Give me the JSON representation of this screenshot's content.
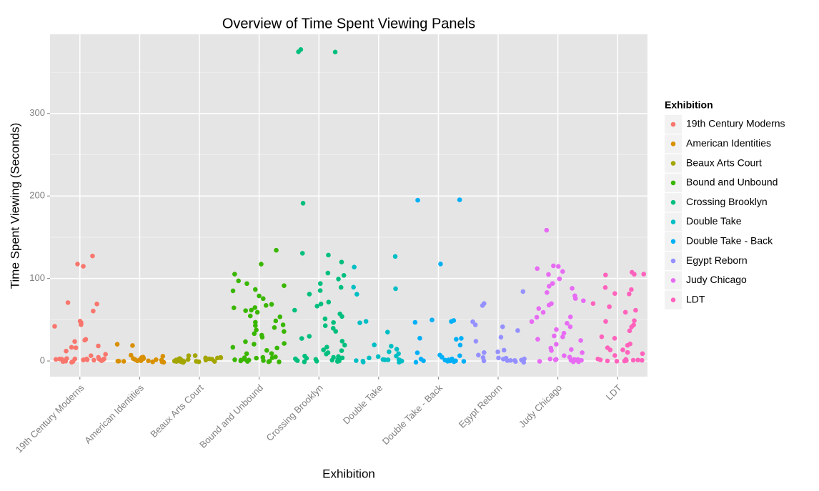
{
  "chart_data": {
    "type": "strip",
    "title": "Overview of Time Spent Viewing Panels",
    "x_label": "Exhibition",
    "y_label": "Time Spent Viewing (Seconds)",
    "legend_title": "Exhibition",
    "categories": [
      "19th Century Moderns",
      "American Identities",
      "Beaux Arts Court",
      "Bound and Unbound",
      "Crossing Brooklyn",
      "Double Take",
      "Double Take - Back",
      "Egypt Reborn",
      "Judy Chicago",
      "LDT"
    ],
    "ylim": [
      -19,
      396
    ],
    "yticks": [
      0,
      100,
      200,
      300
    ],
    "grid": true,
    "series": [
      {
        "name": "19th Century Moderns",
        "color": "#F8766D",
        "values": [
          126,
          116,
          116,
          70,
          70,
          61,
          47,
          45,
          43,
          42,
          25,
          25,
          22,
          17,
          17,
          17,
          11,
          7,
          5,
          4,
          3,
          3,
          2,
          2,
          1,
          1,
          1,
          0,
          0,
          0,
          0,
          0,
          2,
          1,
          3,
          0,
          1,
          2
        ]
      },
      {
        "name": "American Identities",
        "color": "#D89000",
        "values": [
          20,
          17,
          7,
          6,
          5,
          4,
          3,
          3,
          2,
          2,
          1,
          1,
          1,
          0,
          0,
          0,
          0,
          0,
          1,
          2,
          1,
          0,
          0,
          1
        ]
      },
      {
        "name": "Beaux Arts Court",
        "color": "#A3A500",
        "values": [
          8,
          7,
          6,
          5,
          4,
          4,
          3,
          3,
          2,
          2,
          2,
          1,
          1,
          1,
          0,
          0,
          0,
          0,
          1,
          2,
          0,
          1,
          0,
          1
        ]
      },
      {
        "name": "Bound and Unbound",
        "color": "#39B600",
        "values": [
          133,
          118,
          105,
          98,
          95,
          92,
          88,
          85,
          80,
          75,
          70,
          68,
          66,
          65,
          63,
          60,
          58,
          55,
          52,
          50,
          48,
          45,
          42,
          40,
          38,
          36,
          33,
          30,
          28,
          25,
          22,
          20,
          18,
          15,
          12,
          10,
          8,
          6,
          5,
          4,
          3,
          2,
          1,
          0,
          0,
          0,
          0,
          1,
          2,
          0,
          3,
          1
        ]
      },
      {
        "name": "Crossing Brooklyn",
        "color": "#00BF7D",
        "values": [
          376,
          376,
          376,
          190,
          132,
          127,
          120,
          108,
          104,
          100,
          95,
          90,
          87,
          80,
          72,
          68,
          65,
          62,
          58,
          55,
          50,
          46,
          42,
          38,
          35,
          30,
          27,
          24,
          20,
          16,
          14,
          12,
          10,
          8,
          6,
          5,
          4,
          3,
          2,
          1,
          0,
          0,
          0,
          0,
          1,
          2,
          0,
          3,
          1
        ]
      },
      {
        "name": "Double Take",
        "color": "#00BFC4",
        "values": [
          128,
          114,
          88,
          88,
          80,
          48,
          45,
          34,
          20,
          18,
          16,
          12,
          10,
          7,
          5,
          4,
          3,
          2,
          1,
          0,
          0,
          0,
          1,
          2,
          0,
          1
        ]
      },
      {
        "name": "Double Take - Back",
        "color": "#00B0F6",
        "values": [
          195,
          195,
          117,
          50,
          49,
          49,
          48,
          28,
          27,
          27,
          18,
          9,
          8,
          5,
          3,
          2,
          1,
          0,
          0,
          0,
          0,
          1,
          0,
          1,
          2,
          0
        ]
      },
      {
        "name": "Egypt Reborn",
        "color": "#9590FF",
        "values": [
          84,
          68,
          68,
          47,
          45,
          42,
          38,
          28,
          25,
          14,
          11,
          10,
          7,
          5,
          4,
          3,
          2,
          1,
          0,
          0,
          0,
          1,
          0,
          1,
          2
        ]
      },
      {
        "name": "Judy Chicago",
        "color": "#E76BF3",
        "values": [
          159,
          117,
          115,
          112,
          108,
          106,
          100,
          95,
          92,
          88,
          84,
          80,
          76,
          72,
          70,
          66,
          62,
          58,
          55,
          52,
          48,
          45,
          42,
          38,
          35,
          32,
          30,
          27,
          24,
          20,
          17,
          14,
          12,
          10,
          8,
          6,
          4,
          3,
          2,
          1,
          0,
          0,
          0,
          0,
          1,
          2,
          0
        ]
      },
      {
        "name": "LDT",
        "color": "#FF62BC",
        "values": [
          106,
          105,
          104,
          103,
          90,
          85,
          82,
          80,
          70,
          65,
          60,
          58,
          50,
          48,
          45,
          40,
          35,
          30,
          26,
          22,
          20,
          17,
          14,
          12,
          10,
          8,
          6,
          4,
          3,
          2,
          1,
          0,
          0,
          0,
          1,
          2,
          0
        ]
      }
    ]
  }
}
